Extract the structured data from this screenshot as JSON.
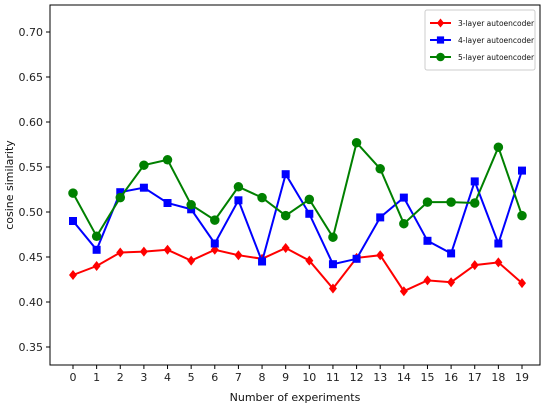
{
  "chart_data": {
    "type": "line",
    "xlabel": "Number of experiments",
    "ylabel": "cosine similarity",
    "x": [
      0,
      1,
      2,
      3,
      4,
      5,
      6,
      7,
      8,
      9,
      10,
      11,
      12,
      13,
      14,
      15,
      16,
      17,
      18,
      19
    ],
    "x_tick_labels": [
      "0",
      "1",
      "2",
      "3",
      "4",
      "5",
      "6",
      "7",
      "8",
      "9",
      "10",
      "11",
      "12",
      "13",
      "14",
      "15",
      "16",
      "17",
      "18",
      "19"
    ],
    "ylim": [
      0.33,
      0.73
    ],
    "y_ticks": [
      0.35,
      0.4,
      0.45,
      0.5,
      0.55,
      0.6,
      0.65,
      0.7
    ],
    "y_tick_labels": [
      "0.35",
      "0.40",
      "0.45",
      "0.50",
      "0.55",
      "0.60",
      "0.65",
      "0.70"
    ],
    "grid": false,
    "legend_position": "top-right",
    "series": [
      {
        "name": "3-layer autoencoder",
        "color": "#ff0000",
        "marker": "diamond",
        "values": [
          0.43,
          0.44,
          0.455,
          0.456,
          0.458,
          0.446,
          0.458,
          0.452,
          0.448,
          0.46,
          0.446,
          0.415,
          0.449,
          0.452,
          0.412,
          0.424,
          0.422,
          0.441,
          0.444,
          0.421
        ]
      },
      {
        "name": "4-layer autoencoder",
        "color": "#0000ff",
        "marker": "square",
        "values": [
          0.49,
          0.458,
          0.522,
          0.527,
          0.51,
          0.503,
          0.465,
          0.513,
          0.445,
          0.542,
          0.498,
          0.442,
          0.448,
          0.494,
          0.516,
          0.468,
          0.454,
          0.534,
          0.465,
          0.546
        ]
      },
      {
        "name": "5-layer autoencoder",
        "color": "#008000",
        "marker": "circle",
        "values": [
          0.521,
          0.473,
          0.516,
          0.552,
          0.558,
          0.508,
          0.491,
          0.528,
          0.516,
          0.496,
          0.514,
          0.472,
          0.577,
          0.548,
          0.487,
          0.511,
          0.511,
          0.51,
          0.572,
          0.496
        ]
      }
    ]
  }
}
